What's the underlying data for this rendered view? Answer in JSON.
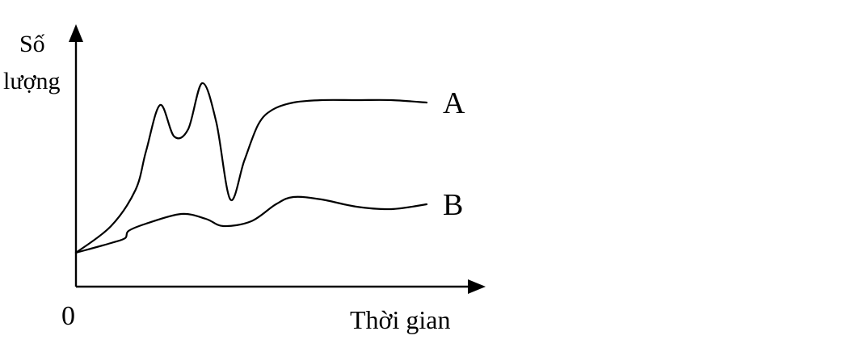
{
  "chart_data": {
    "type": "line",
    "title": "",
    "ylabel_lines": [
      "Số",
      "lượng"
    ],
    "xlabel": "Thời gian",
    "origin_label": "0",
    "grid": false,
    "xlim": [
      0,
      100
    ],
    "ylim": [
      0,
      100
    ],
    "series": [
      {
        "name": "A",
        "x": [
          0,
          10,
          17,
          20,
          24,
          28,
          32,
          36,
          40,
          44,
          48,
          52,
          56,
          62,
          70,
          80,
          90,
          100
        ],
        "y": [
          14,
          25,
          40,
          56,
          75,
          62,
          65,
          84,
          68,
          36,
          52,
          67,
          73,
          76,
          77,
          77,
          77,
          76
        ]
      },
      {
        "name": "B",
        "x": [
          0,
          10,
          14,
          15,
          20,
          30,
          37,
          42,
          50,
          57,
          62,
          70,
          80,
          90,
          100
        ],
        "y": [
          14,
          18,
          20,
          23,
          26,
          30,
          28,
          25,
          27,
          34,
          37,
          36,
          33,
          32,
          34
        ]
      }
    ]
  }
}
